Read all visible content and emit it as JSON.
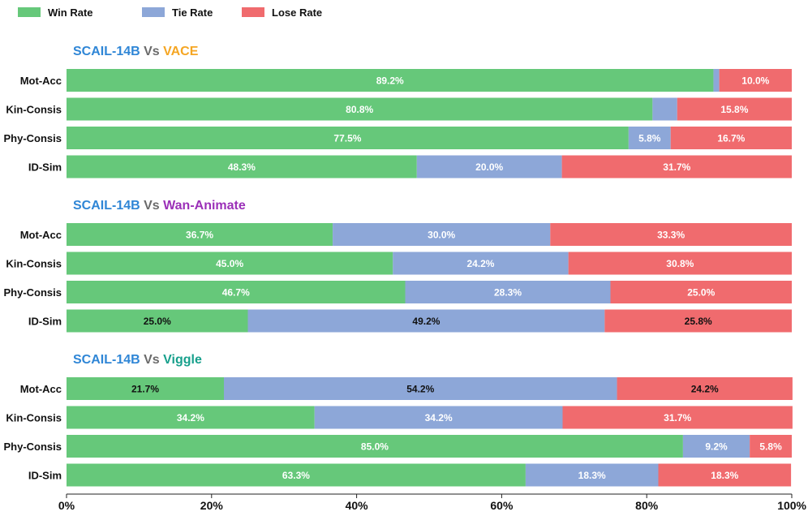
{
  "chart_data": {
    "type": "bar",
    "orientation": "horizontal",
    "stacked": true,
    "legend": {
      "placement": "top-left",
      "entries": [
        {
          "name": "Win Rate",
          "color": "#66c87a"
        },
        {
          "name": "Tie Rate",
          "color": "#8da7d8"
        },
        {
          "name": "Lose Rate",
          "color": "#f06b6e"
        }
      ]
    },
    "xlim": [
      0,
      100
    ],
    "xticks": [
      0,
      20,
      40,
      60,
      80,
      100
    ],
    "xtick_labels": [
      "0%",
      "20%",
      "40%",
      "60%",
      "80%",
      "100%"
    ],
    "grid": false,
    "panels": [
      {
        "title": {
          "left": "SCAIL-14B",
          "vs": "Vs",
          "right": "VACE",
          "left_color": "#2f86d6",
          "vs_color": "#6b6b6b",
          "right_color": "#f5a623"
        },
        "categories": [
          "Mot-Acc",
          "Kin-Consis",
          "Phy-Consis",
          "ID-Sim"
        ],
        "series": [
          {
            "name": "Win Rate",
            "values": [
              89.2,
              80.8,
              77.5,
              48.3
            ],
            "labels": [
              "89.2%",
              "80.8%",
              "77.5%",
              "48.3%"
            ]
          },
          {
            "name": "Tie Rate",
            "values": [
              0.8,
              3.4,
              5.8,
              20.0
            ],
            "labels": [
              "",
              "",
              "5.8%",
              "20.0%"
            ]
          },
          {
            "name": "Lose Rate",
            "values": [
              10.0,
              15.8,
              16.7,
              31.7
            ],
            "labels": [
              "10.0%",
              "15.8%",
              "16.7%",
              "31.7%"
            ]
          }
        ],
        "label_color": "#ffffff"
      },
      {
        "title": {
          "left": "SCAIL-14B",
          "vs": "Vs",
          "right": "Wan-Animate",
          "left_color": "#2f86d6",
          "vs_color": "#6b6b6b",
          "right_color": "#9b30b8"
        },
        "categories": [
          "Mot-Acc",
          "Kin-Consis",
          "Phy-Consis",
          "ID-Sim"
        ],
        "series": [
          {
            "name": "Win Rate",
            "values": [
              36.7,
              45.0,
              46.7,
              25.0
            ],
            "labels": [
              "36.7%",
              "45.0%",
              "46.7%",
              "25.0%"
            ]
          },
          {
            "name": "Tie Rate",
            "values": [
              30.0,
              24.2,
              28.3,
              49.2
            ],
            "labels": [
              "30.0%",
              "24.2%",
              "28.3%",
              "49.2%"
            ]
          },
          {
            "name": "Lose Rate",
            "values": [
              33.3,
              30.8,
              25.0,
              25.8
            ],
            "labels": [
              "33.3%",
              "30.8%",
              "25.0%",
              "25.8%"
            ]
          }
        ],
        "label_colors": [
          "#ffffff",
          "#ffffff",
          "#ffffff",
          "#111111"
        ]
      },
      {
        "title": {
          "left": "SCAIL-14B",
          "vs": "Vs",
          "right": "Viggle",
          "left_color": "#2f86d6",
          "vs_color": "#6b6b6b",
          "right_color": "#17a08c"
        },
        "categories": [
          "Mot-Acc",
          "Kin-Consis",
          "Phy-Consis",
          "ID-Sim"
        ],
        "series": [
          {
            "name": "Win Rate",
            "values": [
              21.7,
              34.2,
              85.0,
              63.3
            ],
            "labels": [
              "21.7%",
              "34.2%",
              "85.0%",
              "63.3%"
            ]
          },
          {
            "name": "Tie Rate",
            "values": [
              54.2,
              34.2,
              9.2,
              18.3
            ],
            "labels": [
              "54.2%",
              "34.2%",
              "9.2%",
              "18.3%"
            ]
          },
          {
            "name": "Lose Rate",
            "values": [
              24.2,
              31.7,
              5.8,
              18.3
            ],
            "labels": [
              "24.2%",
              "31.7%",
              "5.8%",
              "18.3%"
            ]
          }
        ],
        "label_colors": [
          "#111111",
          "#ffffff",
          "#ffffff",
          "#ffffff"
        ]
      }
    ]
  }
}
